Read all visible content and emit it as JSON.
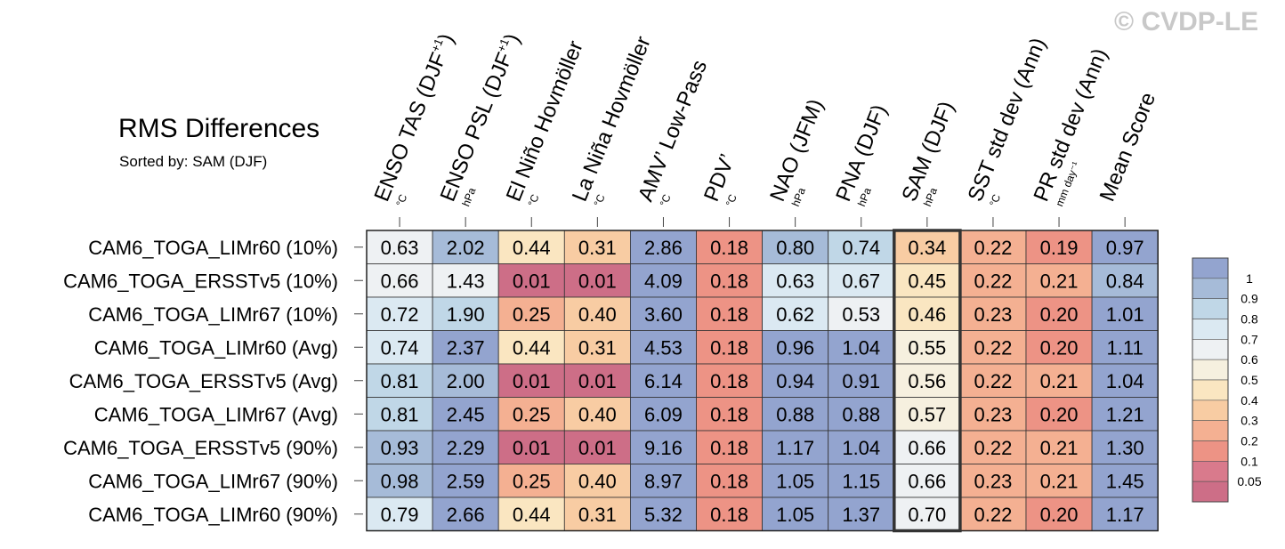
{
  "watermark": "© CVDP-LE",
  "chart_data": {
    "type": "heatmap",
    "title": "RMS Differences",
    "subtitle": "Sorted by: SAM (DJF)",
    "highlight_column": "SAM (DJF)",
    "columns": [
      {
        "label": "ENSO TAS (DJF",
        "sup": "+1",
        "close": ")",
        "unit": "°C"
      },
      {
        "label": "ENSO PSL (DJF",
        "sup": "+1",
        "close": ")",
        "unit": "hPa"
      },
      {
        "label": "El Niño Hovmöller",
        "sup": "",
        "close": "",
        "unit": "°C"
      },
      {
        "label": "La Niña Hovmöller",
        "sup": "",
        "close": "",
        "unit": "°C"
      },
      {
        "label": "AMV’ Low-Pass",
        "sup": "",
        "close": "",
        "unit": "°C"
      },
      {
        "label": "PDV’",
        "sup": "",
        "close": "",
        "unit": "°C"
      },
      {
        "label": "NAO (JFM)",
        "sup": "",
        "close": "",
        "unit": "hPa"
      },
      {
        "label": "PNA (DJF)",
        "sup": "",
        "close": "",
        "unit": "hPa"
      },
      {
        "label": "SAM (DJF)",
        "sup": "",
        "close": "",
        "unit": "hPa"
      },
      {
        "label": "SST std dev (Ann)",
        "sup": "",
        "close": "",
        "unit": "°C"
      },
      {
        "label": "PR std dev (Ann)",
        "sup": "",
        "close": "",
        "unit": "mm day⁻¹"
      },
      {
        "label": "Mean Score",
        "sup": "",
        "close": "",
        "unit": ""
      }
    ],
    "rows": [
      {
        "name": "CAM6_TOGA_LIMr60 (10%)",
        "values": [
          "0.63",
          "2.02",
          "0.44",
          "0.31",
          "2.86",
          "0.18",
          "0.80",
          "0.74",
          "0.34",
          "0.22",
          "0.19",
          "0.97"
        ]
      },
      {
        "name": "CAM6_TOGA_ERSSTv5 (10%)",
        "values": [
          "0.66",
          "1.43",
          "0.01",
          "0.01",
          "4.09",
          "0.18",
          "0.63",
          "0.67",
          "0.45",
          "0.22",
          "0.21",
          "0.84"
        ]
      },
      {
        "name": "CAM6_TOGA_LIMr67 (10%)",
        "values": [
          "0.72",
          "1.90",
          "0.25",
          "0.40",
          "3.60",
          "0.18",
          "0.62",
          "0.53",
          "0.46",
          "0.23",
          "0.20",
          "1.01"
        ]
      },
      {
        "name": "CAM6_TOGA_LIMr60 (Avg)",
        "values": [
          "0.74",
          "2.37",
          "0.44",
          "0.31",
          "4.53",
          "0.18",
          "0.96",
          "1.04",
          "0.55",
          "0.22",
          "0.20",
          "1.11"
        ]
      },
      {
        "name": "CAM6_TOGA_ERSSTv5 (Avg)",
        "values": [
          "0.81",
          "2.00",
          "0.01",
          "0.01",
          "6.14",
          "0.18",
          "0.94",
          "0.91",
          "0.56",
          "0.22",
          "0.21",
          "1.04"
        ]
      },
      {
        "name": "CAM6_TOGA_LIMr67 (Avg)",
        "values": [
          "0.81",
          "2.45",
          "0.25",
          "0.40",
          "6.09",
          "0.18",
          "0.88",
          "0.88",
          "0.57",
          "0.23",
          "0.20",
          "1.21"
        ]
      },
      {
        "name": "CAM6_TOGA_ERSSTv5 (90%)",
        "values": [
          "0.93",
          "2.29",
          "0.01",
          "0.01",
          "9.16",
          "0.18",
          "1.17",
          "1.04",
          "0.66",
          "0.22",
          "0.21",
          "1.30"
        ]
      },
      {
        "name": "CAM6_TOGA_LIMr67 (90%)",
        "values": [
          "0.98",
          "2.59",
          "0.25",
          "0.40",
          "8.97",
          "0.18",
          "1.05",
          "1.15",
          "0.66",
          "0.23",
          "0.21",
          "1.45"
        ]
      },
      {
        "name": "CAM6_TOGA_LIMr60 (90%)",
        "values": [
          "0.79",
          "2.66",
          "0.44",
          "0.31",
          "5.32",
          "0.18",
          "1.05",
          "1.37",
          "0.70",
          "0.22",
          "0.20",
          "1.17"
        ]
      }
    ],
    "colorbar": {
      "ticks": [
        "1",
        "0.9",
        "0.8",
        "0.7",
        "0.6",
        "0.5",
        "0.4",
        "0.3",
        "0.2",
        "0.1",
        "0.05"
      ],
      "colors": [
        "#93a4cf",
        "#a6bbd8",
        "#c0d7e7",
        "#dbe9f2",
        "#eef1f3",
        "#f6f0df",
        "#fae6c1",
        "#f8cca3",
        "#f4b092",
        "#ed9385",
        "#d97a8c",
        "#cd6e87"
      ]
    }
  }
}
